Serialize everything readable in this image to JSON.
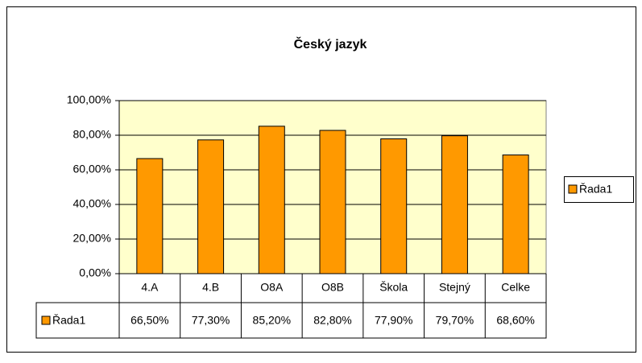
{
  "chart_data": {
    "type": "bar",
    "title": "Český jazyk",
    "categories": [
      "4.A",
      "4.B",
      "O8A",
      "O8B",
      "Škola",
      "Stejný",
      "Celke"
    ],
    "series": [
      {
        "name": "Řada1",
        "color": "#ff9900",
        "values": [
          66.5,
          77.3,
          85.2,
          82.8,
          77.9,
          79.7,
          68.6
        ],
        "value_labels": [
          "66,50%",
          "77,30%",
          "85,20%",
          "82,80%",
          "77,90%",
          "79,70%",
          "68,60%"
        ]
      }
    ],
    "ylim": [
      0,
      100
    ],
    "yticks": [
      {
        "value": 0,
        "label": "0,00%"
      },
      {
        "value": 20,
        "label": "20,00%"
      },
      {
        "value": 40,
        "label": "40,00%"
      },
      {
        "value": 60,
        "label": "60,00%"
      },
      {
        "value": 80,
        "label": "80,00%"
      },
      {
        "value": 100,
        "label": "100,00%"
      }
    ],
    "grid": true,
    "legend": "right",
    "plot_background": "#ffffcc"
  }
}
